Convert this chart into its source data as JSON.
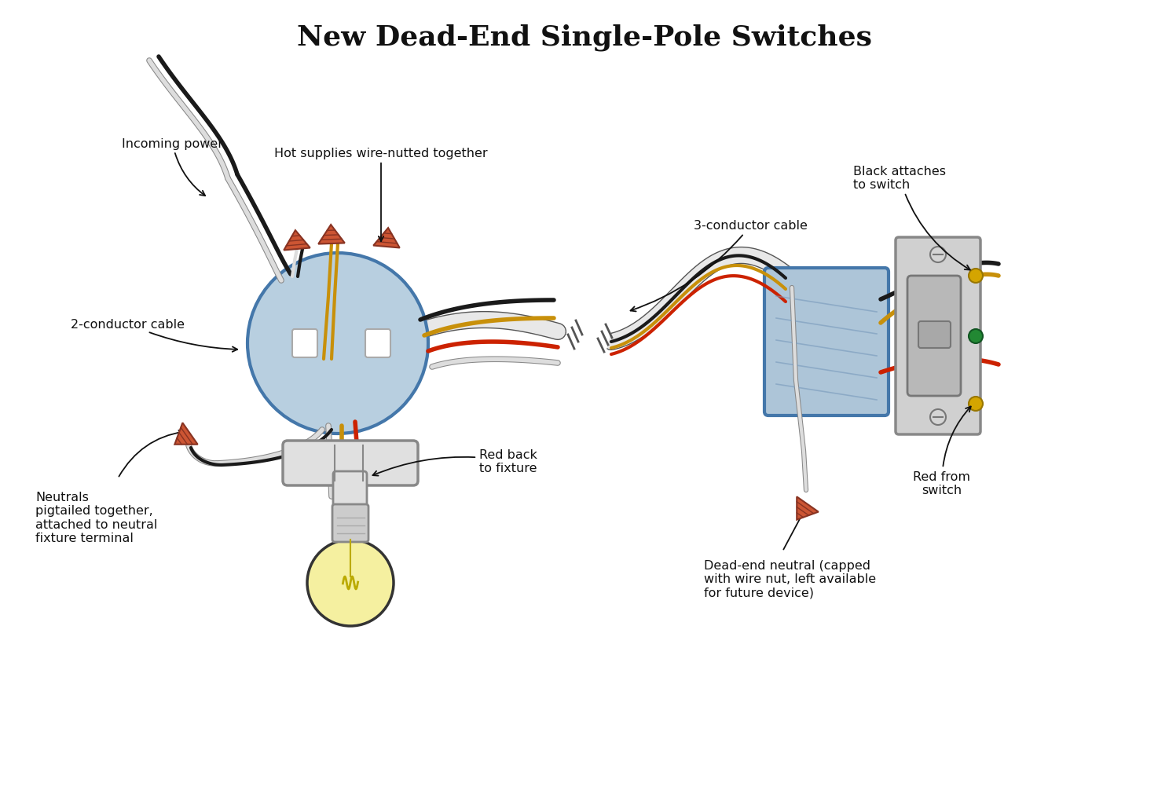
{
  "title": "New Dead-End Single-Pole Switches",
  "title_fontsize": 26,
  "title_font": "serif",
  "title_fontweight": "bold",
  "bg_color": "#ffffff",
  "labels": {
    "incoming_power": "Incoming power",
    "hot_supplies": "Hot supplies wire-nutted together",
    "two_conductor": "2-conductor cable",
    "neutrals": "Neutrals\npigtailed together,\nattached to neutral\nfixture terminal",
    "red_back": "Red back\nto fixture",
    "three_conductor": "3-conductor cable",
    "black_attaches": "Black attaches\nto switch",
    "dead_end": "Dead-end neutral (capped\nwith wire nut, left available\nfor future device)",
    "red_from": "Red from\nswitch"
  },
  "colors": {
    "wire_black": "#1a1a1a",
    "wire_white": "#dddddd",
    "wire_white_outline": "#999999",
    "wire_red": "#cc2200",
    "wire_yellow": "#c8900a",
    "junction_box_fill": "#b8cfe0",
    "junction_box_stroke": "#4477aa",
    "switch_box_fill": "#adc5d8",
    "switch_box_stroke": "#4477aa",
    "switch_body_fill": "#c8c8c8",
    "switch_body_stroke": "#777777",
    "wire_nut_fill": "#cc5533",
    "wire_nut_stroke": "#883322",
    "bulb_fill": "#f5f0a0",
    "bulb_stroke": "#333333",
    "fixture_fill": "#e0e0e0",
    "fixture_stroke": "#888888",
    "text_color": "#111111"
  }
}
